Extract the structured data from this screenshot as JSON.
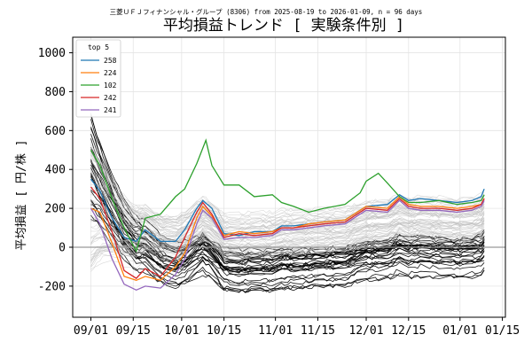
{
  "chart_data": {
    "type": "line",
    "subtitle": "三菱ＵＦＪフィナンシャル・グループ (8306) from 2025-08-19 to 2026-01-09, n = 96 days",
    "title": "平均損益トレンド [ 実験条件別 ]",
    "ylabel": "平均損益 [ 円/株 ]",
    "xlabel": "",
    "ylim": [
      -360,
      1080
    ],
    "xlim": [
      "2025-08-26",
      "2026-01-16"
    ],
    "yticks": [
      -200,
      0,
      200,
      400,
      600,
      800,
      1000
    ],
    "xticks": [
      {
        "date": "2025-09-01",
        "label": "09/01"
      },
      {
        "date": "2025-09-15",
        "label": "09/15"
      },
      {
        "date": "2025-10-01",
        "label": "10/01"
      },
      {
        "date": "2025-10-15",
        "label": "10/15"
      },
      {
        "date": "2025-11-01",
        "label": "11/01"
      },
      {
        "date": "2025-11-15",
        "label": "11/15"
      },
      {
        "date": "2025-12-01",
        "label": "12/01"
      },
      {
        "date": "2025-12-15",
        "label": "12/15"
      },
      {
        "date": "2026-01-01",
        "label": "01/01"
      },
      {
        "date": "2026-01-15",
        "label": "01/15"
      }
    ],
    "grid": true,
    "zero_line": true,
    "legend": {
      "title": "top 5",
      "placement": "top-left"
    },
    "series": [
      {
        "name": "258",
        "color": "#1f77b4",
        "points": [
          [
            "2025-09-01",
            350
          ],
          [
            "2025-09-04",
            290
          ],
          [
            "2025-09-08",
            150
          ],
          [
            "2025-09-12",
            50
          ],
          [
            "2025-09-16",
            30
          ],
          [
            "2025-09-19",
            90
          ],
          [
            "2025-09-24",
            30
          ],
          [
            "2025-09-29",
            30
          ],
          [
            "2025-10-02",
            90
          ],
          [
            "2025-10-06",
            200
          ],
          [
            "2025-10-08",
            240
          ],
          [
            "2025-10-11",
            200
          ],
          [
            "2025-10-15",
            70
          ],
          [
            "2025-10-20",
            60
          ],
          [
            "2025-10-25",
            80
          ],
          [
            "2025-10-31",
            80
          ],
          [
            "2025-11-03",
            110
          ],
          [
            "2025-11-07",
            110
          ],
          [
            "2025-11-12",
            120
          ],
          [
            "2025-11-17",
            130
          ],
          [
            "2025-11-24",
            140
          ],
          [
            "2025-12-01",
            210
          ],
          [
            "2025-12-08",
            220
          ],
          [
            "2025-12-12",
            270
          ],
          [
            "2025-12-15",
            240
          ],
          [
            "2025-12-19",
            250
          ],
          [
            "2025-12-25",
            240
          ],
          [
            "2025-12-31",
            230
          ],
          [
            "2026-01-05",
            240
          ],
          [
            "2026-01-08",
            260
          ],
          [
            "2026-01-09",
            300
          ]
        ]
      },
      {
        "name": "224",
        "color": "#ff7f0e",
        "points": [
          [
            "2025-09-01",
            200
          ],
          [
            "2025-09-04",
            180
          ],
          [
            "2025-09-08",
            20
          ],
          [
            "2025-09-12",
            -150
          ],
          [
            "2025-09-16",
            -170
          ],
          [
            "2025-09-19",
            -150
          ],
          [
            "2025-09-24",
            -170
          ],
          [
            "2025-09-29",
            -100
          ],
          [
            "2025-10-02",
            -30
          ],
          [
            "2025-10-06",
            150
          ],
          [
            "2025-10-08",
            210
          ],
          [
            "2025-10-11",
            160
          ],
          [
            "2025-10-15",
            60
          ],
          [
            "2025-10-20",
            80
          ],
          [
            "2025-10-25",
            70
          ],
          [
            "2025-10-31",
            80
          ],
          [
            "2025-11-03",
            100
          ],
          [
            "2025-11-07",
            100
          ],
          [
            "2025-11-12",
            120
          ],
          [
            "2025-11-17",
            130
          ],
          [
            "2025-11-24",
            140
          ],
          [
            "2025-12-01",
            210
          ],
          [
            "2025-12-08",
            200
          ],
          [
            "2025-12-12",
            260
          ],
          [
            "2025-12-15",
            220
          ],
          [
            "2025-12-19",
            210
          ],
          [
            "2025-12-25",
            210
          ],
          [
            "2025-12-31",
            200
          ],
          [
            "2026-01-05",
            210
          ],
          [
            "2026-01-08",
            220
          ],
          [
            "2026-01-09",
            250
          ]
        ]
      },
      {
        "name": "102",
        "color": "#2ca02c",
        "points": [
          [
            "2025-09-01",
            500
          ],
          [
            "2025-09-04",
            420
          ],
          [
            "2025-09-08",
            250
          ],
          [
            "2025-09-12",
            100
          ],
          [
            "2025-09-16",
            -20
          ],
          [
            "2025-09-19",
            150
          ],
          [
            "2025-09-24",
            170
          ],
          [
            "2025-09-29",
            260
          ],
          [
            "2025-10-02",
            300
          ],
          [
            "2025-10-06",
            430
          ],
          [
            "2025-10-09",
            550
          ],
          [
            "2025-10-11",
            420
          ],
          [
            "2025-10-15",
            320
          ],
          [
            "2025-10-20",
            320
          ],
          [
            "2025-10-25",
            260
          ],
          [
            "2025-10-31",
            270
          ],
          [
            "2025-11-03",
            230
          ],
          [
            "2025-11-07",
            210
          ],
          [
            "2025-11-12",
            180
          ],
          [
            "2025-11-17",
            200
          ],
          [
            "2025-11-24",
            220
          ],
          [
            "2025-11-29",
            280
          ],
          [
            "2025-12-01",
            340
          ],
          [
            "2025-12-05",
            380
          ],
          [
            "2025-12-08",
            330
          ],
          [
            "2025-12-12",
            260
          ],
          [
            "2025-12-15",
            230
          ],
          [
            "2025-12-19",
            230
          ],
          [
            "2025-12-25",
            240
          ],
          [
            "2025-12-31",
            220
          ],
          [
            "2026-01-05",
            230
          ],
          [
            "2026-01-08",
            240
          ],
          [
            "2026-01-09",
            270
          ]
        ]
      },
      {
        "name": "242",
        "color": "#d62728",
        "points": [
          [
            "2025-09-01",
            310
          ],
          [
            "2025-09-04",
            250
          ],
          [
            "2025-09-08",
            80
          ],
          [
            "2025-09-12",
            -120
          ],
          [
            "2025-09-16",
            -160
          ],
          [
            "2025-09-19",
            -110
          ],
          [
            "2025-09-24",
            -150
          ],
          [
            "2025-09-29",
            -50
          ],
          [
            "2025-10-02",
            50
          ],
          [
            "2025-10-06",
            180
          ],
          [
            "2025-10-08",
            230
          ],
          [
            "2025-10-11",
            170
          ],
          [
            "2025-10-15",
            50
          ],
          [
            "2025-10-20",
            70
          ],
          [
            "2025-10-25",
            60
          ],
          [
            "2025-10-31",
            70
          ],
          [
            "2025-11-03",
            100
          ],
          [
            "2025-11-07",
            100
          ],
          [
            "2025-11-12",
            110
          ],
          [
            "2025-11-17",
            120
          ],
          [
            "2025-11-24",
            130
          ],
          [
            "2025-12-01",
            200
          ],
          [
            "2025-12-08",
            190
          ],
          [
            "2025-12-12",
            250
          ],
          [
            "2025-12-15",
            210
          ],
          [
            "2025-12-19",
            200
          ],
          [
            "2025-12-25",
            200
          ],
          [
            "2025-12-31",
            190
          ],
          [
            "2026-01-05",
            200
          ],
          [
            "2026-01-08",
            220
          ],
          [
            "2026-01-09",
            250
          ]
        ]
      },
      {
        "name": "241",
        "color": "#9467bd",
        "points": [
          [
            "2025-09-01",
            200
          ],
          [
            "2025-09-04",
            120
          ],
          [
            "2025-09-08",
            -60
          ],
          [
            "2025-09-12",
            -190
          ],
          [
            "2025-09-16",
            -220
          ],
          [
            "2025-09-19",
            -200
          ],
          [
            "2025-09-24",
            -210
          ],
          [
            "2025-09-29",
            -140
          ],
          [
            "2025-10-02",
            -60
          ],
          [
            "2025-10-06",
            120
          ],
          [
            "2025-10-08",
            190
          ],
          [
            "2025-10-11",
            150
          ],
          [
            "2025-10-15",
            40
          ],
          [
            "2025-10-20",
            50
          ],
          [
            "2025-10-25",
            50
          ],
          [
            "2025-10-31",
            60
          ],
          [
            "2025-11-03",
            90
          ],
          [
            "2025-11-07",
            90
          ],
          [
            "2025-11-12",
            100
          ],
          [
            "2025-11-17",
            110
          ],
          [
            "2025-11-24",
            120
          ],
          [
            "2025-12-01",
            190
          ],
          [
            "2025-12-08",
            180
          ],
          [
            "2025-12-12",
            240
          ],
          [
            "2025-12-15",
            200
          ],
          [
            "2025-12-19",
            190
          ],
          [
            "2025-12-25",
            190
          ],
          [
            "2025-12-31",
            180
          ],
          [
            "2026-01-05",
            190
          ],
          [
            "2026-01-08",
            210
          ],
          [
            "2026-01-09",
            240
          ]
        ]
      }
    ],
    "other_series_count": 91,
    "other_series_colors": {
      "positive_band": "#bbbbbb",
      "negative_band": "#000000"
    }
  }
}
